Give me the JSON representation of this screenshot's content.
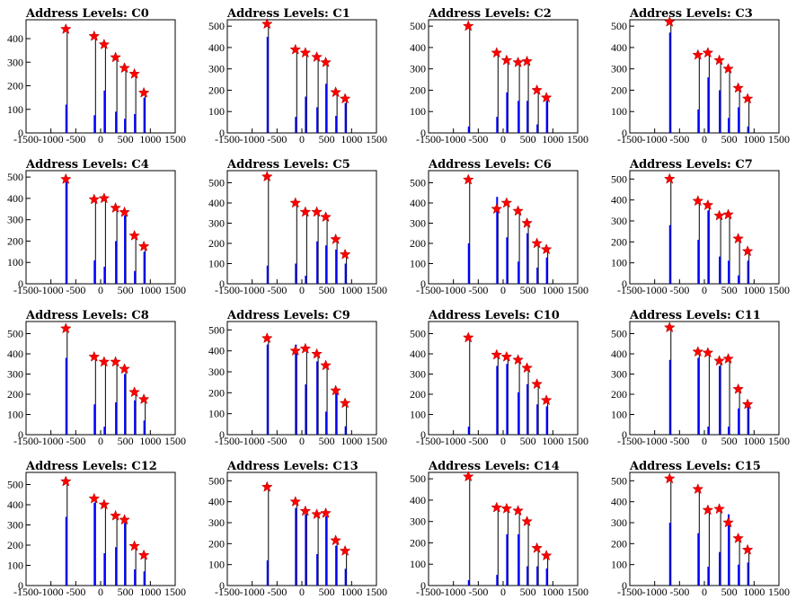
{
  "colors": {
    "hist": "#0000ff",
    "spike": "#000000",
    "marker": "#ff0000",
    "frame": "#000000"
  },
  "chart_data": [
    {
      "type": "histogram",
      "title": "Address Levels: C0",
      "xlim": [
        -1500,
        1500
      ],
      "ylim": [
        0,
        480
      ],
      "xticks": [
        "-1500",
        "-1000",
        "-500",
        "0",
        "500",
        "1000",
        "1500"
      ],
      "yticks": [
        "0",
        "100",
        "200",
        "300",
        "400"
      ],
      "peaks": [
        {
          "x": -700,
          "y": 440,
          "blue": 120
        },
        {
          "x": -130,
          "y": 410,
          "blue": 75
        },
        {
          "x": 70,
          "y": 375,
          "blue": 180
        },
        {
          "x": 300,
          "y": 320,
          "blue": 90
        },
        {
          "x": 480,
          "y": 275,
          "blue": 60
        },
        {
          "x": 680,
          "y": 250,
          "blue": 80
        },
        {
          "x": 870,
          "y": 170,
          "blue": 150
        }
      ]
    },
    {
      "type": "histogram",
      "title": "Address Levels: C1",
      "xlim": [
        -1500,
        1500
      ],
      "ylim": [
        0,
        530
      ],
      "xticks": [
        "-1500",
        "-1000",
        "-500",
        "0",
        "500",
        "1000",
        "1500"
      ],
      "yticks": [
        "0",
        "100",
        "200",
        "300",
        "400",
        "500"
      ],
      "peaks": [
        {
          "x": -700,
          "y": 510,
          "blue": 450
        },
        {
          "x": -130,
          "y": 390,
          "blue": 75
        },
        {
          "x": 70,
          "y": 375,
          "blue": 170
        },
        {
          "x": 300,
          "y": 355,
          "blue": 120
        },
        {
          "x": 480,
          "y": 330,
          "blue": 230
        },
        {
          "x": 680,
          "y": 190,
          "blue": 80
        },
        {
          "x": 870,
          "y": 160,
          "blue": 140
        }
      ]
    },
    {
      "type": "histogram",
      "title": "Address Levels: C2",
      "xlim": [
        -1500,
        1500
      ],
      "ylim": [
        0,
        530
      ],
      "xticks": [
        "-1500",
        "-1000",
        "-500",
        "0",
        "500",
        "1000",
        "1500"
      ],
      "yticks": [
        "0",
        "100",
        "200",
        "300",
        "400",
        "500"
      ],
      "peaks": [
        {
          "x": -700,
          "y": 500,
          "blue": 30
        },
        {
          "x": -130,
          "y": 375,
          "blue": 75
        },
        {
          "x": 70,
          "y": 340,
          "blue": 190
        },
        {
          "x": 300,
          "y": 330,
          "blue": 150
        },
        {
          "x": 480,
          "y": 335,
          "blue": 150
        },
        {
          "x": 680,
          "y": 200,
          "blue": 40
        },
        {
          "x": 870,
          "y": 165,
          "blue": 150
        }
      ]
    },
    {
      "type": "histogram",
      "title": "Address Levels: C3",
      "xlim": [
        -1500,
        1500
      ],
      "ylim": [
        0,
        530
      ],
      "xticks": [
        "-1500",
        "-1000",
        "-500",
        "0",
        "500",
        "1000",
        "1500"
      ],
      "yticks": [
        "0",
        "100",
        "200",
        "300",
        "400",
        "500"
      ],
      "peaks": [
        {
          "x": -700,
          "y": 520,
          "blue": 470
        },
        {
          "x": -130,
          "y": 365,
          "blue": 110
        },
        {
          "x": 70,
          "y": 375,
          "blue": 260
        },
        {
          "x": 300,
          "y": 340,
          "blue": 200
        },
        {
          "x": 480,
          "y": 300,
          "blue": 70
        },
        {
          "x": 680,
          "y": 210,
          "blue": 120
        },
        {
          "x": 870,
          "y": 160,
          "blue": 30
        }
      ]
    },
    {
      "type": "histogram",
      "title": "Address Levels: C4",
      "xlim": [
        -1500,
        1500
      ],
      "ylim": [
        0,
        530
      ],
      "xticks": [
        "-1500",
        "-1000",
        "-500",
        "0",
        "500",
        "1000",
        "1500"
      ],
      "yticks": [
        "0",
        "100",
        "200",
        "300",
        "400",
        "500"
      ],
      "peaks": [
        {
          "x": -700,
          "y": 490,
          "blue": 480
        },
        {
          "x": -130,
          "y": 395,
          "blue": 110
        },
        {
          "x": 70,
          "y": 400,
          "blue": 80
        },
        {
          "x": 300,
          "y": 355,
          "blue": 200
        },
        {
          "x": 480,
          "y": 335,
          "blue": 320
        },
        {
          "x": 680,
          "y": 225,
          "blue": 60
        },
        {
          "x": 870,
          "y": 175,
          "blue": 150
        }
      ]
    },
    {
      "type": "histogram",
      "title": "Address Levels: C5",
      "xlim": [
        -1500,
        1500
      ],
      "ylim": [
        0,
        560
      ],
      "xticks": [
        "-1500",
        "-1000",
        "-500",
        "0",
        "500",
        "1000",
        "1500"
      ],
      "yticks": [
        "0",
        "100",
        "200",
        "300",
        "400",
        "500"
      ],
      "peaks": [
        {
          "x": -700,
          "y": 530,
          "blue": 90
        },
        {
          "x": -130,
          "y": 400,
          "blue": 100
        },
        {
          "x": 70,
          "y": 355,
          "blue": 40
        },
        {
          "x": 300,
          "y": 355,
          "blue": 210
        },
        {
          "x": 480,
          "y": 330,
          "blue": 190
        },
        {
          "x": 680,
          "y": 220,
          "blue": 170
        },
        {
          "x": 870,
          "y": 145,
          "blue": 100
        }
      ]
    },
    {
      "type": "histogram",
      "title": "Address Levels: C6",
      "xlim": [
        -1500,
        1500
      ],
      "ylim": [
        0,
        560
      ],
      "xticks": [
        "-1500",
        "-1000",
        "-500",
        "0",
        "500",
        "1000",
        "1500"
      ],
      "yticks": [
        "0",
        "100",
        "200",
        "300",
        "400",
        "500"
      ],
      "peaks": [
        {
          "x": -700,
          "y": 515,
          "blue": 200
        },
        {
          "x": -130,
          "y": 370,
          "blue": 430
        },
        {
          "x": 70,
          "y": 400,
          "blue": 230
        },
        {
          "x": 300,
          "y": 360,
          "blue": 110
        },
        {
          "x": 480,
          "y": 300,
          "blue": 250
        },
        {
          "x": 680,
          "y": 200,
          "blue": 80
        },
        {
          "x": 870,
          "y": 170,
          "blue": 130
        }
      ]
    },
    {
      "type": "histogram",
      "title": "Address Levels: C7",
      "xlim": [
        -1500,
        1500
      ],
      "ylim": [
        0,
        540
      ],
      "xticks": [
        "-1500",
        "-1000",
        "-500",
        "0",
        "500",
        "1000",
        "1500"
      ],
      "yticks": [
        "0",
        "100",
        "200",
        "300",
        "400",
        "500"
      ],
      "peaks": [
        {
          "x": -700,
          "y": 500,
          "blue": 280
        },
        {
          "x": -130,
          "y": 395,
          "blue": 210
        },
        {
          "x": 70,
          "y": 375,
          "blue": 350
        },
        {
          "x": 300,
          "y": 325,
          "blue": 130
        },
        {
          "x": 480,
          "y": 330,
          "blue": 110
        },
        {
          "x": 680,
          "y": 215,
          "blue": 40
        },
        {
          "x": 870,
          "y": 155,
          "blue": 110
        }
      ]
    },
    {
      "type": "histogram",
      "title": "Address Levels: C8",
      "xlim": [
        -1500,
        1500
      ],
      "ylim": [
        0,
        560
      ],
      "xticks": [
        "-1500",
        "-1000",
        "-500",
        "0",
        "500",
        "1000",
        "1500"
      ],
      "yticks": [
        "0",
        "100",
        "200",
        "300",
        "400",
        "500"
      ],
      "peaks": [
        {
          "x": -700,
          "y": 525,
          "blue": 380
        },
        {
          "x": -130,
          "y": 385,
          "blue": 150
        },
        {
          "x": 70,
          "y": 360,
          "blue": 40
        },
        {
          "x": 300,
          "y": 360,
          "blue": 160
        },
        {
          "x": 480,
          "y": 325,
          "blue": 300
        },
        {
          "x": 680,
          "y": 210,
          "blue": 170
        },
        {
          "x": 870,
          "y": 175,
          "blue": 70
        }
      ]
    },
    {
      "type": "histogram",
      "title": "Address Levels: C9",
      "xlim": [
        -1500,
        1500
      ],
      "ylim": [
        0,
        540
      ],
      "xticks": [
        "-1500",
        "-1000",
        "-500",
        "0",
        "500",
        "1000",
        "1500"
      ],
      "yticks": [
        "0",
        "100",
        "200",
        "300",
        "400",
        "500"
      ],
      "peaks": [
        {
          "x": -700,
          "y": 460,
          "blue": 430
        },
        {
          "x": -130,
          "y": 400,
          "blue": 430
        },
        {
          "x": 70,
          "y": 410,
          "blue": 240
        },
        {
          "x": 300,
          "y": 385,
          "blue": 350
        },
        {
          "x": 480,
          "y": 330,
          "blue": 110
        },
        {
          "x": 680,
          "y": 210,
          "blue": 200
        },
        {
          "x": 870,
          "y": 150,
          "blue": 40
        }
      ]
    },
    {
      "type": "histogram",
      "title": "Address Levels: C10",
      "xlim": [
        -1500,
        1500
      ],
      "ylim": [
        0,
        560
      ],
      "xticks": [
        "-1500",
        "-1000",
        "-500",
        "0",
        "500",
        "1000",
        "1500"
      ],
      "yticks": [
        "0",
        "100",
        "200",
        "300",
        "400",
        "500"
      ],
      "peaks": [
        {
          "x": -700,
          "y": 480,
          "blue": 40
        },
        {
          "x": -130,
          "y": 395,
          "blue": 340
        },
        {
          "x": 70,
          "y": 385,
          "blue": 350
        },
        {
          "x": 300,
          "y": 370,
          "blue": 210
        },
        {
          "x": 480,
          "y": 330,
          "blue": 250
        },
        {
          "x": 680,
          "y": 250,
          "blue": 150
        },
        {
          "x": 870,
          "y": 170,
          "blue": 140
        }
      ]
    },
    {
      "type": "histogram",
      "title": "Address Levels: C11",
      "xlim": [
        -1500,
        1500
      ],
      "ylim": [
        0,
        560
      ],
      "xticks": [
        "-1500",
        "-1000",
        "-500",
        "0",
        "500",
        "1000",
        "1500"
      ],
      "yticks": [
        "0",
        "100",
        "200",
        "300",
        "400",
        "500"
      ],
      "peaks": [
        {
          "x": -700,
          "y": 530,
          "blue": 370
        },
        {
          "x": -130,
          "y": 410,
          "blue": 380
        },
        {
          "x": 70,
          "y": 405,
          "blue": 40
        },
        {
          "x": 300,
          "y": 365,
          "blue": 340
        },
        {
          "x": 480,
          "y": 375,
          "blue": 40
        },
        {
          "x": 680,
          "y": 225,
          "blue": 130
        },
        {
          "x": 870,
          "y": 150,
          "blue": 140
        }
      ]
    },
    {
      "type": "histogram",
      "title": "Address Levels: C12",
      "xlim": [
        -1500,
        1500
      ],
      "ylim": [
        0,
        560
      ],
      "xticks": [
        "-1500",
        "-1000",
        "-500",
        "0",
        "500",
        "1000",
        "1500"
      ],
      "yticks": [
        "0",
        "100",
        "200",
        "300",
        "400",
        "500"
      ],
      "peaks": [
        {
          "x": -700,
          "y": 515,
          "blue": 340
        },
        {
          "x": -130,
          "y": 430,
          "blue": 410
        },
        {
          "x": 70,
          "y": 400,
          "blue": 160
        },
        {
          "x": 300,
          "y": 345,
          "blue": 190
        },
        {
          "x": 480,
          "y": 325,
          "blue": 310
        },
        {
          "x": 680,
          "y": 195,
          "blue": 80
        },
        {
          "x": 870,
          "y": 150,
          "blue": 70
        }
      ]
    },
    {
      "type": "histogram",
      "title": "Address Levels: C13",
      "xlim": [
        -1500,
        1500
      ],
      "ylim": [
        0,
        540
      ],
      "xticks": [
        "-1500",
        "-1000",
        "-500",
        "0",
        "500",
        "1000",
        "1500"
      ],
      "yticks": [
        "0",
        "100",
        "200",
        "300",
        "400",
        "500"
      ],
      "peaks": [
        {
          "x": -700,
          "y": 470,
          "blue": 120
        },
        {
          "x": -130,
          "y": 400,
          "blue": 370
        },
        {
          "x": 70,
          "y": 355,
          "blue": 340
        },
        {
          "x": 300,
          "y": 340,
          "blue": 150
        },
        {
          "x": 480,
          "y": 345,
          "blue": 330
        },
        {
          "x": 680,
          "y": 215,
          "blue": 190
        },
        {
          "x": 870,
          "y": 165,
          "blue": 80
        }
      ]
    },
    {
      "type": "histogram",
      "title": "Address Levels: C14",
      "xlim": [
        -1500,
        1500
      ],
      "ylim": [
        0,
        530
      ],
      "xticks": [
        "-1500",
        "-1000",
        "-500",
        "0",
        "500",
        "1000",
        "1500"
      ],
      "yticks": [
        "0",
        "100",
        "200",
        "300",
        "400",
        "500"
      ],
      "peaks": [
        {
          "x": -700,
          "y": 510,
          "blue": 25
        },
        {
          "x": -130,
          "y": 365,
          "blue": 50
        },
        {
          "x": 70,
          "y": 360,
          "blue": 240
        },
        {
          "x": 300,
          "y": 350,
          "blue": 240
        },
        {
          "x": 480,
          "y": 300,
          "blue": 90
        },
        {
          "x": 680,
          "y": 175,
          "blue": 90
        },
        {
          "x": 870,
          "y": 140,
          "blue": 80
        }
      ]
    },
    {
      "type": "histogram",
      "title": "Address Levels: C15",
      "xlim": [
        -1500,
        1500
      ],
      "ylim": [
        0,
        540
      ],
      "xticks": [
        "-1500",
        "-1000",
        "-500",
        "0",
        "500",
        "1000",
        "1500"
      ],
      "yticks": [
        "0",
        "100",
        "200",
        "300",
        "400",
        "500"
      ],
      "peaks": [
        {
          "x": -700,
          "y": 510,
          "blue": 300
        },
        {
          "x": -130,
          "y": 460,
          "blue": 250
        },
        {
          "x": 70,
          "y": 360,
          "blue": 90
        },
        {
          "x": 300,
          "y": 365,
          "blue": 160
        },
        {
          "x": 480,
          "y": 300,
          "blue": 340
        },
        {
          "x": 680,
          "y": 225,
          "blue": 100
        },
        {
          "x": 870,
          "y": 170,
          "blue": 110
        }
      ]
    }
  ]
}
